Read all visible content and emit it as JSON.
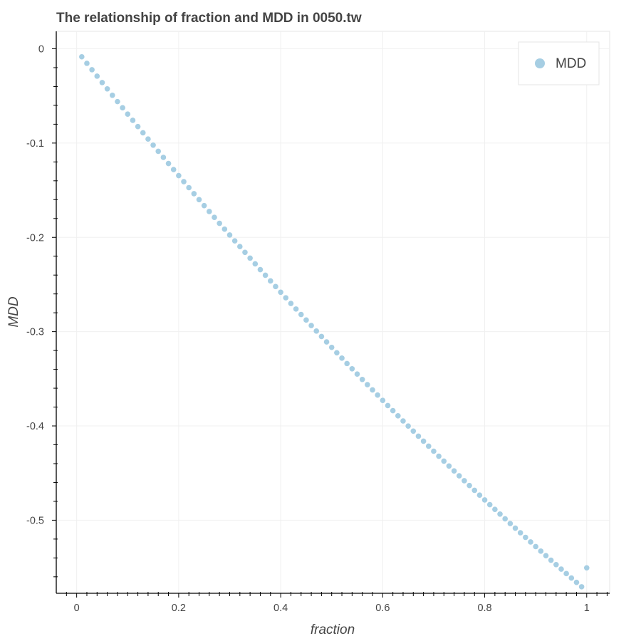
{
  "chart_data": {
    "type": "scatter",
    "title": "The relationship of fraction and MDD in 0050.tw",
    "xlabel": "fraction",
    "ylabel": "MDD",
    "xlim": [
      -0.04,
      1.045
    ],
    "ylim": [
      -0.5775,
      0.0185
    ],
    "xticks": [
      0,
      0.2,
      0.4,
      0.6,
      0.8,
      1
    ],
    "xtick_labels": [
      "0",
      "0.2",
      "0.4",
      "0.6",
      "0.8",
      "1"
    ],
    "yticks": [
      0,
      -0.1,
      -0.2,
      -0.3,
      -0.4,
      -0.5
    ],
    "ytick_labels": [
      "0",
      "-0.1",
      "-0.2",
      "-0.3",
      "-0.4",
      "-0.5"
    ],
    "grid": true,
    "legend_position": "top-right",
    "colors": {
      "point": "#a6cee3",
      "grid": "#f0f0f0",
      "axis": "#000000",
      "text": "#444444"
    },
    "series": [
      {
        "name": "MDD",
        "x": [
          0.01,
          0.02,
          0.03,
          0.04,
          0.05,
          0.06,
          0.07,
          0.08,
          0.09,
          0.1,
          0.11,
          0.12,
          0.13,
          0.14,
          0.15,
          0.16,
          0.17,
          0.18,
          0.19,
          0.2,
          0.21,
          0.22,
          0.23,
          0.24,
          0.25,
          0.26,
          0.27,
          0.28,
          0.29,
          0.3,
          0.31,
          0.32,
          0.33,
          0.34,
          0.35,
          0.36,
          0.37,
          0.38,
          0.39,
          0.4,
          0.41,
          0.42,
          0.43,
          0.44,
          0.45,
          0.46,
          0.47,
          0.48,
          0.49,
          0.5,
          0.51,
          0.52,
          0.53,
          0.54,
          0.55,
          0.56,
          0.57,
          0.58,
          0.59,
          0.6,
          0.61,
          0.62,
          0.63,
          0.64,
          0.65,
          0.66,
          0.67,
          0.68,
          0.69,
          0.7,
          0.71,
          0.72,
          0.73,
          0.74,
          0.75,
          0.76,
          0.77,
          0.78,
          0.79,
          0.8,
          0.81,
          0.82,
          0.83,
          0.84,
          0.85,
          0.86,
          0.87,
          0.88,
          0.89,
          0.9,
          0.91,
          0.92,
          0.93,
          0.94,
          0.95,
          0.96,
          0.97,
          0.98,
          0.99,
          1.0
        ],
        "y": [
          -0.0085,
          -0.0154,
          -0.0222,
          -0.029,
          -0.0358,
          -0.0425,
          -0.0493,
          -0.056,
          -0.0626,
          -0.0693,
          -0.0759,
          -0.0825,
          -0.0891,
          -0.0957,
          -0.1022,
          -0.1087,
          -0.1152,
          -0.1217,
          -0.1281,
          -0.1345,
          -0.1409,
          -0.1473,
          -0.1537,
          -0.16,
          -0.1663,
          -0.1726,
          -0.1788,
          -0.1851,
          -0.1913,
          -0.1975,
          -0.2037,
          -0.2098,
          -0.2159,
          -0.222,
          -0.2281,
          -0.2342,
          -0.2402,
          -0.2462,
          -0.2522,
          -0.2582,
          -0.2641,
          -0.2701,
          -0.276,
          -0.2818,
          -0.2877,
          -0.2935,
          -0.2994,
          -0.3051,
          -0.3109,
          -0.3167,
          -0.3224,
          -0.3281,
          -0.3338,
          -0.3394,
          -0.345,
          -0.3507,
          -0.3562,
          -0.3618,
          -0.3673,
          -0.3729,
          -0.3784,
          -0.3838,
          -0.3893,
          -0.3947,
          -0.4001,
          -0.4055,
          -0.4109,
          -0.4162,
          -0.4215,
          -0.4268,
          -0.4321,
          -0.4373,
          -0.4425,
          -0.4477,
          -0.4529,
          -0.4581,
          -0.4632,
          -0.4683,
          -0.4734,
          -0.4785,
          -0.4835,
          -0.4885,
          -0.4935,
          -0.4985,
          -0.5035,
          -0.5084,
          -0.5133,
          -0.5182,
          -0.5231,
          -0.528,
          -0.5328,
          -0.5376,
          -0.5424,
          -0.5471,
          -0.5519,
          -0.5566,
          -0.5613,
          -0.5659,
          -0.5706,
          -0.5505
        ]
      }
    ]
  }
}
